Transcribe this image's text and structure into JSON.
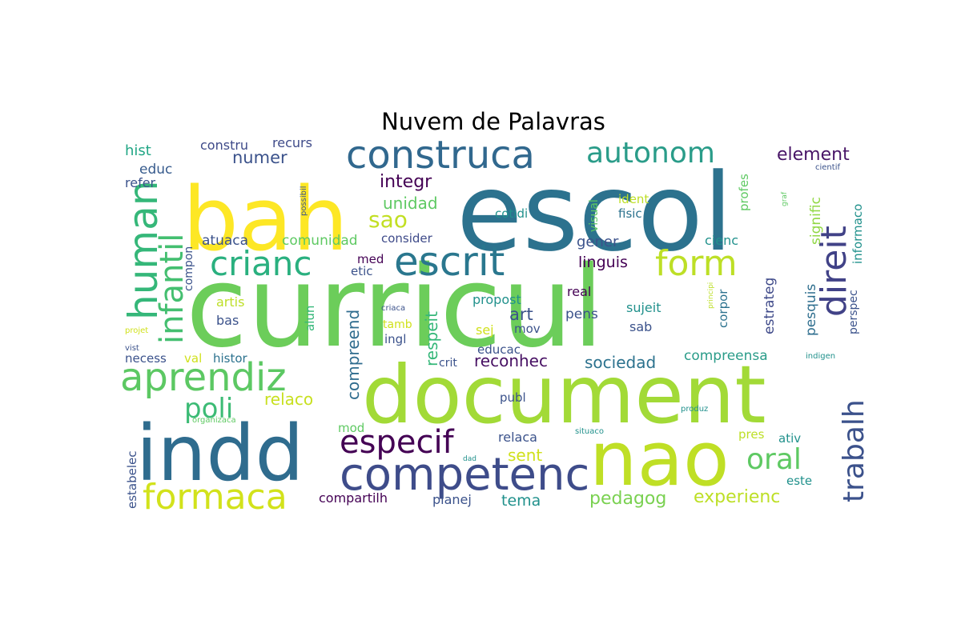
{
  "chart_data": {
    "type": "wordcloud",
    "title": "Nuvem de Palavras",
    "background": "#ffffff",
    "palette": "viridis",
    "words": [
      {
        "text": "curricul",
        "weight": 140,
        "color": "#6ccd5a"
      },
      {
        "text": "escol",
        "weight": 132,
        "color": "#2c728e"
      },
      {
        "text": "bah",
        "weight": 125,
        "color": "#fde725"
      },
      {
        "text": "document",
        "weight": 100,
        "color": "#a2da37"
      },
      {
        "text": "indd",
        "weight": 98,
        "color": "#2f6c8e"
      },
      {
        "text": "nao",
        "weight": 93,
        "color": "#bfdf25"
      },
      {
        "text": "competenc",
        "weight": 57,
        "color": "#3e4c8a"
      },
      {
        "text": "construca",
        "weight": 48,
        "color": "#31688e"
      },
      {
        "text": "human",
        "weight": 50,
        "color": "#35b779"
      },
      {
        "text": "escrit",
        "weight": 49,
        "color": "#2a778e"
      },
      {
        "text": "aprendiz",
        "weight": 47,
        "color": "#5cc863"
      },
      {
        "text": "crianc",
        "weight": 42,
        "color": "#2ab07f"
      },
      {
        "text": "form",
        "weight": 44,
        "color": "#bddf26"
      },
      {
        "text": "direit",
        "weight": 42,
        "color": "#414287"
      },
      {
        "text": "formaca",
        "weight": 44,
        "color": "#d2e21b"
      },
      {
        "text": "infantil",
        "weight": 40,
        "color": "#44bf70"
      },
      {
        "text": "especif",
        "weight": 40,
        "color": "#440154"
      },
      {
        "text": "autonom",
        "weight": 36,
        "color": "#2a9c89"
      },
      {
        "text": "trabalh",
        "weight": 36,
        "color": "#3b518b"
      },
      {
        "text": "oral",
        "weight": 36,
        "color": "#5ec962"
      },
      {
        "text": "poli",
        "weight": 34,
        "color": "#3cbb75"
      },
      {
        "text": "sao",
        "weight": 28,
        "color": "#c2df23"
      },
      {
        "text": "integr",
        "weight": 22,
        "color": "#440154"
      },
      {
        "text": "unidad",
        "weight": 20,
        "color": "#5ec962"
      },
      {
        "text": "numer",
        "weight": 21,
        "color": "#3b528b"
      },
      {
        "text": "element",
        "weight": 22,
        "color": "#481567"
      },
      {
        "text": "pedagog",
        "weight": 22,
        "color": "#7ad151"
      },
      {
        "text": "experienc",
        "weight": 22,
        "color": "#bddf26"
      },
      {
        "text": "sociedad",
        "weight": 20,
        "color": "#2c728e"
      },
      {
        "text": "reconhec",
        "weight": 20,
        "color": "#471063"
      },
      {
        "text": "compreend",
        "weight": 20,
        "color": "#2f6c8e"
      },
      {
        "text": "respeit",
        "weight": 20,
        "color": "#35b779"
      },
      {
        "text": "relaco",
        "weight": 20,
        "color": "#c8e020"
      },
      {
        "text": "linguis",
        "weight": 19,
        "color": "#440154"
      },
      {
        "text": "compreensa",
        "weight": 17,
        "color": "#2a9c89"
      },
      {
        "text": "estrateg",
        "weight": 17,
        "color": "#3e4989"
      },
      {
        "text": "pesquis",
        "weight": 17,
        "color": "#2e6e8e"
      },
      {
        "text": "signific",
        "weight": 17,
        "color": "#90d743"
      },
      {
        "text": "art",
        "weight": 21,
        "color": "#3b528b"
      },
      {
        "text": "sent",
        "weight": 20,
        "color": "#d0e11c"
      },
      {
        "text": "tema",
        "weight": 19,
        "color": "#21918c"
      },
      {
        "text": "hist",
        "weight": 18,
        "color": "#21a685"
      },
      {
        "text": "educ",
        "weight": 17,
        "color": "#375b8d"
      },
      {
        "text": "refer",
        "weight": 16,
        "color": "#3b528b"
      },
      {
        "text": "constru",
        "weight": 16,
        "color": "#3e4a89"
      },
      {
        "text": "recurs",
        "weight": 16,
        "color": "#3e4a89"
      },
      {
        "text": "atuaca",
        "weight": 17,
        "color": "#3b528b"
      },
      {
        "text": "comunidad",
        "weight": 17,
        "color": "#5ec962"
      },
      {
        "text": "consider",
        "weight": 15,
        "color": "#3e4a89"
      },
      {
        "text": "med",
        "weight": 15,
        "color": "#440154"
      },
      {
        "text": "etic",
        "weight": 15,
        "color": "#3b528b"
      },
      {
        "text": "gener",
        "weight": 18,
        "color": "#3b528b"
      },
      {
        "text": "cienc",
        "weight": 16,
        "color": "#21918c"
      },
      {
        "text": "profes",
        "weight": 15,
        "color": "#5ec962"
      },
      {
        "text": "informaco",
        "weight": 15,
        "color": "#21918c"
      },
      {
        "text": "cientif",
        "weight": 10,
        "color": "#3b528b"
      },
      {
        "text": "ident",
        "weight": 15,
        "color": "#bddf26"
      },
      {
        "text": "fisic",
        "weight": 15,
        "color": "#2c728e"
      },
      {
        "text": "cotidi",
        "weight": 15,
        "color": "#21918c"
      },
      {
        "text": "visual",
        "weight": 14,
        "color": "#5ec962"
      },
      {
        "text": "possibil",
        "weight": 10,
        "color": "#3b528b"
      },
      {
        "text": "graf",
        "weight": 9,
        "color": "#5ec962"
      },
      {
        "text": "compon",
        "weight": 14,
        "color": "#3b528b"
      },
      {
        "text": "artis",
        "weight": 16,
        "color": "#bddf26"
      },
      {
        "text": "bas",
        "weight": 16,
        "color": "#3b528b"
      },
      {
        "text": "alun",
        "weight": 15,
        "color": "#35b779"
      },
      {
        "text": "propost",
        "weight": 16,
        "color": "#21918c"
      },
      {
        "text": "real",
        "weight": 16,
        "color": "#440154"
      },
      {
        "text": "pens",
        "weight": 17,
        "color": "#3b528b"
      },
      {
        "text": "sujeit",
        "weight": 16,
        "color": "#21918c"
      },
      {
        "text": "sab",
        "weight": 16,
        "color": "#3b528b"
      },
      {
        "text": "corpor",
        "weight": 15,
        "color": "#2c728e"
      },
      {
        "text": "principi",
        "weight": 9,
        "color": "#bddf26"
      },
      {
        "text": "perspec",
        "weight": 14,
        "color": "#3b528b"
      },
      {
        "text": "criaca",
        "weight": 10,
        "color": "#3b528b"
      },
      {
        "text": "tamb",
        "weight": 14,
        "color": "#d0e11c"
      },
      {
        "text": "ingl",
        "weight": 15,
        "color": "#3b528b"
      },
      {
        "text": "sej",
        "weight": 16,
        "color": "#d0e11c"
      },
      {
        "text": "mov",
        "weight": 15,
        "color": "#3b528b"
      },
      {
        "text": "educac",
        "weight": 15,
        "color": "#3b528b"
      },
      {
        "text": "crit",
        "weight": 14,
        "color": "#3b528b"
      },
      {
        "text": "projet",
        "weight": 10,
        "color": "#d0e11c"
      },
      {
        "text": "vist",
        "weight": 10,
        "color": "#3b528b"
      },
      {
        "text": "necess",
        "weight": 15,
        "color": "#3b528b"
      },
      {
        "text": "val",
        "weight": 15,
        "color": "#d0e11c"
      },
      {
        "text": "histor",
        "weight": 15,
        "color": "#2c728e"
      },
      {
        "text": "indigen",
        "weight": 10,
        "color": "#21918c"
      },
      {
        "text": "organizaca",
        "weight": 10,
        "color": "#5ec962"
      },
      {
        "text": "produz",
        "weight": 10,
        "color": "#21918c"
      },
      {
        "text": "publ",
        "weight": 15,
        "color": "#3b528b"
      },
      {
        "text": "relaca",
        "weight": 16,
        "color": "#3b528b"
      },
      {
        "text": "mod",
        "weight": 15,
        "color": "#5ec962"
      },
      {
        "text": "estabelec",
        "weight": 15,
        "color": "#3b528b"
      },
      {
        "text": "situaco",
        "weight": 10,
        "color": "#21918c"
      },
      {
        "text": "dad",
        "weight": 9,
        "color": "#21918c"
      },
      {
        "text": "pres",
        "weight": 15,
        "color": "#bddf26"
      },
      {
        "text": "ativ",
        "weight": 15,
        "color": "#21918c"
      },
      {
        "text": "este",
        "weight": 15,
        "color": "#21918c"
      },
      {
        "text": "compartilh",
        "weight": 16,
        "color": "#440154"
      },
      {
        "text": "planej",
        "weight": 16,
        "color": "#3b528b"
      }
    ]
  }
}
